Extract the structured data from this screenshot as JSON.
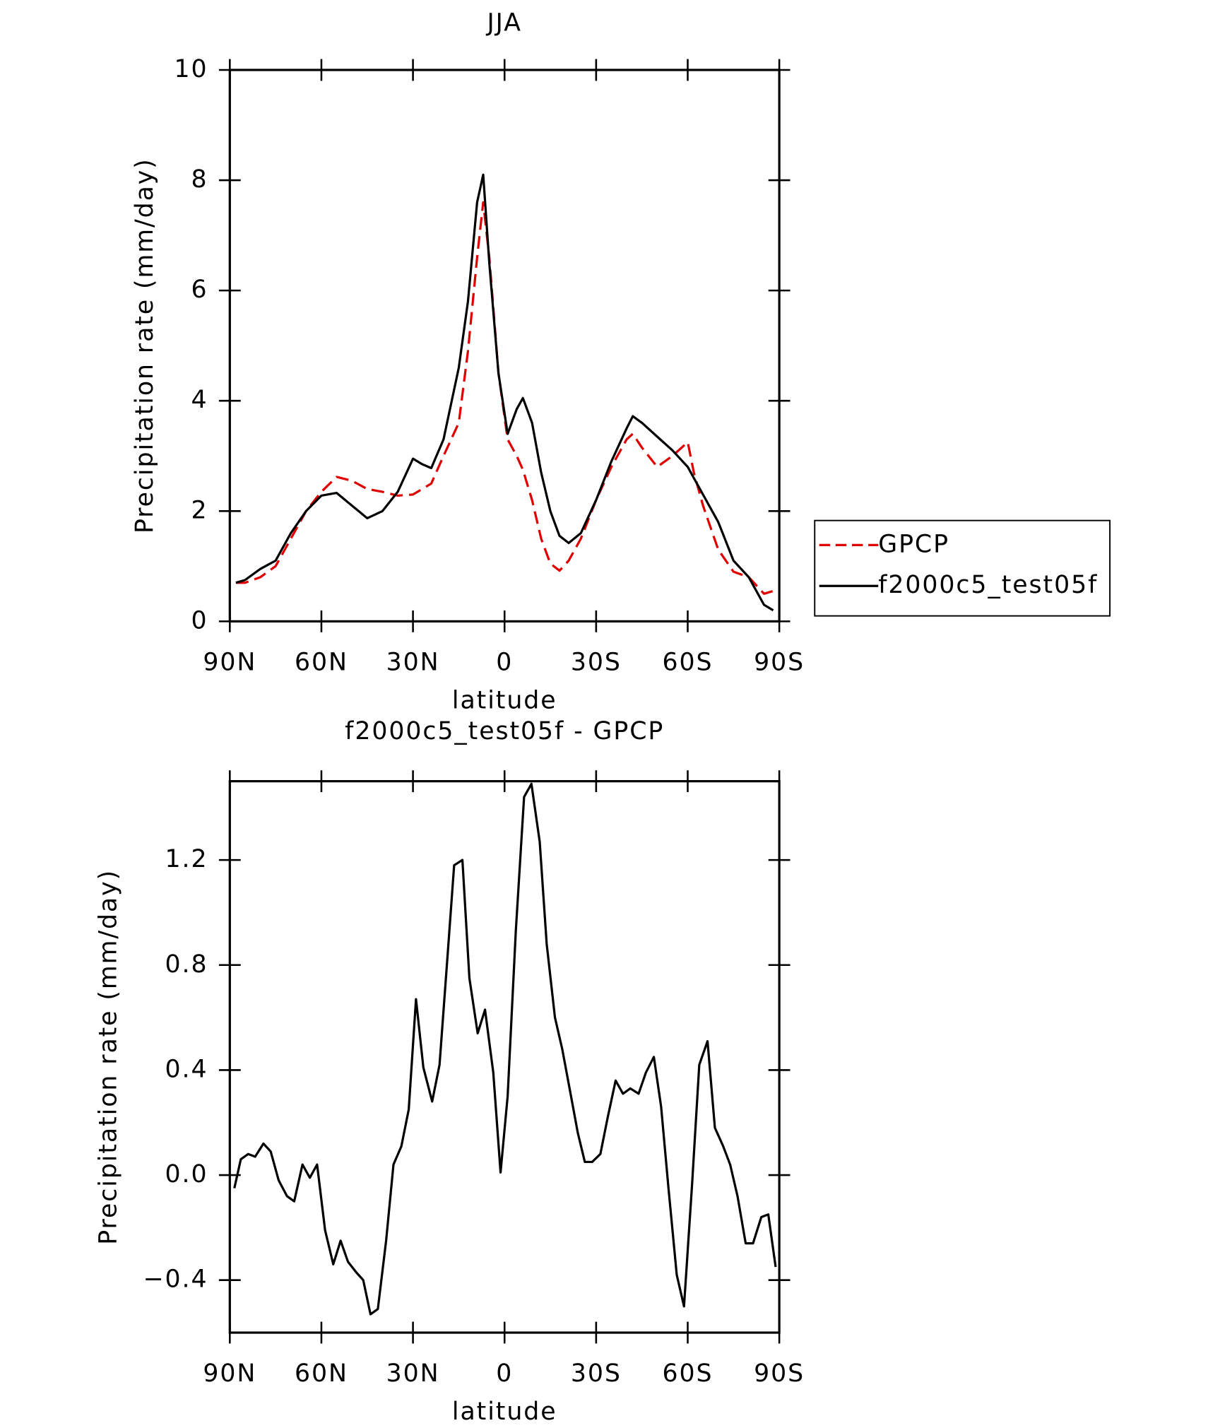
{
  "chart_data": [
    {
      "type": "line",
      "title": "JJA",
      "x_label": "latitude",
      "y_label": "Precipitation rate (mm/day)",
      "x": [
        88,
        85,
        80,
        75,
        70,
        65,
        60,
        55,
        50,
        45,
        40,
        35,
        30,
        27,
        24,
        20,
        15,
        12,
        9,
        7,
        5,
        2,
        -1,
        -4,
        -6,
        -9,
        -12,
        -15,
        -18,
        -21,
        -25,
        -30,
        -35,
        -40,
        -42,
        -45,
        -50,
        -55,
        -60,
        -62,
        -65,
        -70,
        -75,
        -80,
        -85,
        -88
      ],
      "series": [
        {
          "name": "GPCP",
          "color": "#e00000",
          "style": "dashed",
          "values": [
            0.7,
            0.7,
            0.8,
            1.0,
            1.5,
            2.0,
            2.35,
            2.62,
            2.55,
            2.4,
            2.35,
            2.28,
            2.3,
            2.4,
            2.5,
            3.0,
            3.6,
            4.9,
            6.6,
            7.6,
            6.6,
            4.5,
            3.3,
            3.0,
            2.75,
            2.2,
            1.5,
            1.05,
            0.92,
            1.1,
            1.5,
            2.2,
            2.8,
            3.3,
            3.4,
            3.15,
            2.8,
            3.0,
            3.25,
            2.7,
            2.1,
            1.3,
            0.9,
            0.8,
            0.5,
            0.55
          ]
        },
        {
          "name": "f2000c5_test05f",
          "color": "#000000",
          "style": "solid",
          "values": [
            0.7,
            0.75,
            0.95,
            1.1,
            1.6,
            2.0,
            2.28,
            2.33,
            2.1,
            1.87,
            2.0,
            2.35,
            2.95,
            2.85,
            2.78,
            3.3,
            4.6,
            5.8,
            7.6,
            8.1,
            6.5,
            4.5,
            3.4,
            3.85,
            4.05,
            3.6,
            2.7,
            2.0,
            1.55,
            1.42,
            1.6,
            2.2,
            2.9,
            3.5,
            3.72,
            3.6,
            3.35,
            3.1,
            2.8,
            2.6,
            2.3,
            1.8,
            1.1,
            0.8,
            0.3,
            0.2
          ]
        }
      ],
      "xlim": [
        90,
        -90
      ],
      "xticks": [
        {
          "value": 90,
          "label": "90N"
        },
        {
          "value": 60,
          "label": "60N"
        },
        {
          "value": 30,
          "label": "30N"
        },
        0,
        {
          "value": -30,
          "label": "30S"
        },
        {
          "value": -60,
          "label": "60S"
        },
        {
          "value": -90,
          "label": "90S"
        }
      ],
      "ylim": [
        0,
        10
      ],
      "yticks": [
        0,
        2,
        4,
        6,
        8,
        10
      ],
      "legend": "right"
    },
    {
      "type": "line",
      "title": "f2000c5_test05f - GPCP",
      "x_label": "latitude",
      "y_label": "Precipitation rate (mm/day)",
      "x": [
        88.5,
        86.4,
        84,
        81.7,
        79,
        76.6,
        74,
        71.3,
        68.9,
        66.2,
        63.8,
        61.4,
        58.8,
        56.1,
        53.7,
        51.3,
        48.6,
        46.3,
        43.9,
        41.5,
        38.8,
        36.4,
        33.8,
        31.4,
        29,
        26.6,
        23.7,
        21.3,
        18.9,
        16.5,
        13.8,
        11.5,
        8.8,
        6.4,
        3.7,
        1.3,
        -1,
        -3.7,
        -6.4,
        -8.8,
        -11.5,
        -13.8,
        -16.5,
        -18.9,
        -21.3,
        -24,
        -26.3,
        -28.7,
        -31.4,
        -33.8,
        -36.4,
        -38.8,
        -41.2,
        -43.9,
        -46.3,
        -48.9,
        -51.3,
        -53.7,
        -56.4,
        -58.8,
        -61.4,
        -63.8,
        -66.5,
        -68.9,
        -71.6,
        -73.9,
        -76.3,
        -79,
        -81.4,
        -84.1,
        -86.4,
        -88.8
      ],
      "values": [
        -0.05,
        0.06,
        0.08,
        0.07,
        0.12,
        0.09,
        -0.02,
        -0.08,
        -0.1,
        0.04,
        -0.01,
        0.04,
        -0.21,
        -0.34,
        -0.25,
        -0.33,
        -0.37,
        -0.4,
        -0.53,
        -0.51,
        -0.25,
        0.04,
        0.11,
        0.25,
        0.67,
        0.41,
        0.28,
        0.42,
        0.8,
        1.18,
        1.2,
        0.75,
        0.54,
        0.63,
        0.39,
        0.01,
        0.3,
        0.93,
        1.44,
        1.49,
        1.27,
        0.88,
        0.6,
        0.48,
        0.33,
        0.16,
        0.05,
        0.05,
        0.08,
        0.22,
        0.36,
        0.31,
        0.33,
        0.31,
        0.39,
        0.45,
        0.26,
        -0.05,
        -0.38,
        -0.5,
        -0.04,
        0.42,
        0.51,
        0.18,
        0.11,
        0.04,
        -0.08,
        -0.26,
        -0.26,
        -0.16,
        -0.15,
        -0.35
      ],
      "color": "#000000",
      "xlim": [
        90,
        -90
      ],
      "xticks": [
        {
          "value": 90,
          "label": "90N"
        },
        {
          "value": 60,
          "label": "60N"
        },
        {
          "value": 30,
          "label": "30N"
        },
        0,
        {
          "value": -30,
          "label": "30S"
        },
        {
          "value": -60,
          "label": "60S"
        },
        {
          "value": -90,
          "label": "90S"
        }
      ],
      "ylim": [
        -0.6,
        1.5
      ],
      "yticks": [
        {
          "value": -0.4,
          "label": "−0.4"
        },
        {
          "value": 0,
          "label": "0.0"
        },
        0.4,
        0.8,
        1.2
      ]
    }
  ]
}
